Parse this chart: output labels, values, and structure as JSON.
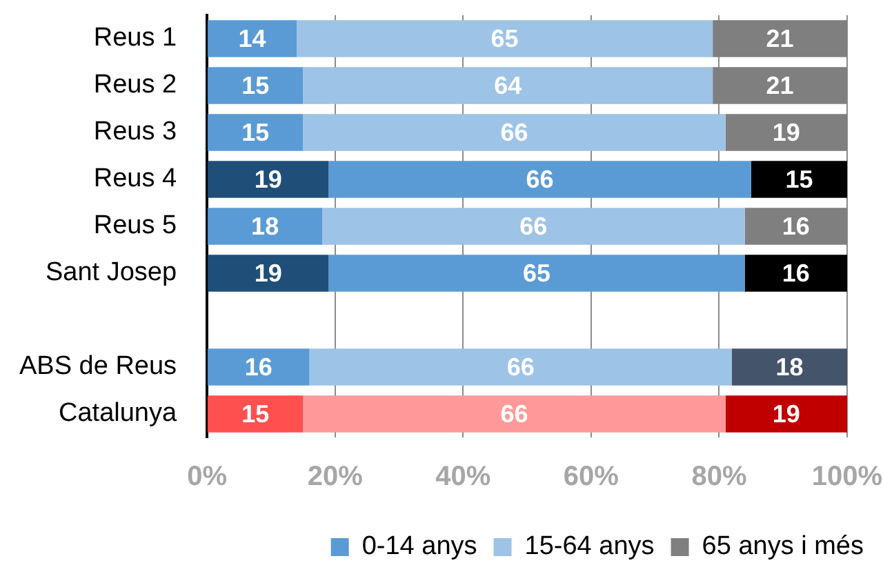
{
  "chart_data": {
    "type": "bar",
    "orientation": "horizontal",
    "stacked": true,
    "categories": [
      "Reus 1",
      "Reus 2",
      "Reus 3",
      "Reus 4",
      "Reus 5",
      "Sant Josep",
      null,
      "ABS de Reus",
      "Catalunya"
    ],
    "series": [
      {
        "name": "0-14 anys",
        "color": "#5b9bd5",
        "colors": [
          "#5b9bd5",
          "#5b9bd5",
          "#5b9bd5",
          "#1f4e79",
          "#5b9bd5",
          "#1f4e79",
          null,
          "#5b9bd5",
          "#ff5050"
        ],
        "values": [
          14,
          15,
          15,
          19,
          18,
          19,
          null,
          16,
          15
        ]
      },
      {
        "name": "15-64 anys",
        "color": "#9dc3e6",
        "colors": [
          "#9dc3e6",
          "#9dc3e6",
          "#9dc3e6",
          "#5b9bd5",
          "#9dc3e6",
          "#5b9bd5",
          null,
          "#9dc3e6",
          "#ff9999"
        ],
        "values": [
          65,
          64,
          66,
          66,
          66,
          65,
          null,
          66,
          66
        ]
      },
      {
        "name": "65 anys i més",
        "color": "#7f7f7f",
        "colors": [
          "#7f7f7f",
          "#7f7f7f",
          "#7f7f7f",
          "#000000",
          "#7f7f7f",
          "#000000",
          null,
          "#44546a",
          "#c00000"
        ],
        "values": [
          21,
          21,
          19,
          15,
          16,
          16,
          null,
          18,
          19
        ]
      }
    ],
    "xlim": [
      0,
      100
    ],
    "xticks": [
      {
        "value": 0,
        "label": "0%"
      },
      {
        "value": 20,
        "label": "20%"
      },
      {
        "value": 40,
        "label": "40%"
      },
      {
        "value": 60,
        "label": "60%"
      },
      {
        "value": 80,
        "label": "80%"
      },
      {
        "value": 100,
        "label": "100%"
      }
    ],
    "grid": "x",
    "legend": "bottom right",
    "data_labels": true
  }
}
